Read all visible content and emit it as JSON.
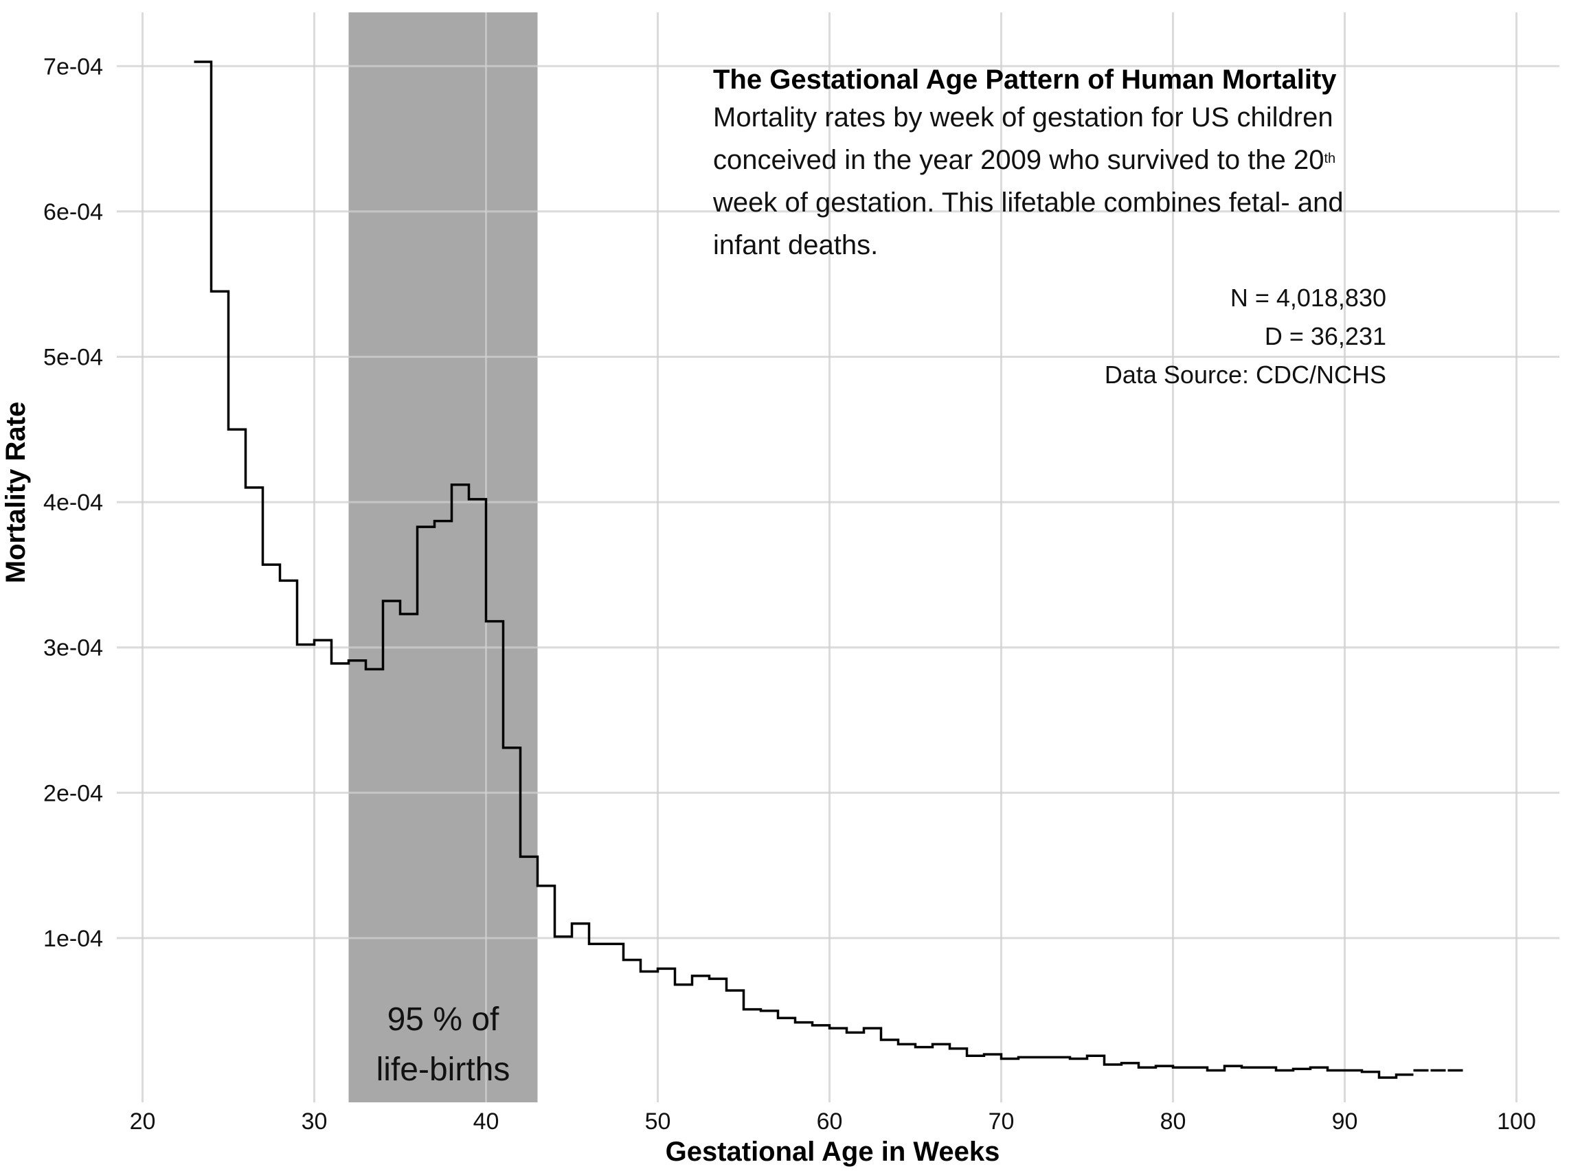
{
  "chart_data": {
    "type": "line",
    "style": "step",
    "title": "The Gestational Age Pattern of Human Mortality",
    "subtitle_parts": {
      "before_sup": "Mortality rates by week of gestation for US children conceived in the year 2009 who survived to the 20",
      "sup": "th",
      "after_sup": " week of gestation. This lifetable combines fetal- and infant deaths."
    },
    "annotations": {
      "n": "N = 4,018,830",
      "d": "D = 36,231",
      "source": "Data Source: CDC/NCHS",
      "band_line1": "95 % of",
      "band_line2": "life-births"
    },
    "xlabel": "Gestational Age in Weeks",
    "ylabel": "Mortality Rate",
    "xlim": [
      18.5,
      102.5
    ],
    "ylim": [
      -1.3e-05,
      0.000737
    ],
    "x_ticks": [
      20,
      30,
      40,
      50,
      60,
      70,
      80,
      90,
      100
    ],
    "x_tick_labels": [
      "20",
      "30",
      "40",
      "50",
      "60",
      "70",
      "80",
      "90",
      "100"
    ],
    "y_ticks": [
      0.0001,
      0.0002,
      0.0003,
      0.0004,
      0.0005,
      0.0006,
      0.0007
    ],
    "y_tick_labels": [
      "1e-04",
      "2e-04",
      "3e-04",
      "4e-04",
      "5e-04",
      "6e-04",
      "7e-04"
    ],
    "band": {
      "x_start": 32,
      "x_end": 43,
      "color": "#a8a8a8"
    },
    "grid": true,
    "line_color": "#000000",
    "series": [
      {
        "x": [
          23,
          24,
          25,
          26,
          27,
          28,
          29,
          30,
          31,
          32,
          33,
          34,
          35,
          36,
          37,
          38,
          39,
          40,
          41,
          42,
          43,
          44,
          45,
          46,
          47,
          48,
          49,
          50,
          51,
          52,
          53,
          54,
          55,
          56,
          57,
          58,
          59,
          60,
          61,
          62,
          63,
          64,
          65,
          66,
          67,
          68,
          69,
          70,
          71,
          72,
          73,
          74,
          75,
          76,
          77,
          78,
          79,
          80,
          81,
          82,
          83,
          84,
          85,
          86,
          87,
          88,
          89,
          90,
          91,
          92,
          93,
          94,
          95,
          96
        ],
        "values": [
          0.000703,
          0.000545,
          0.00045,
          0.00041,
          0.000357,
          0.000346,
          0.000302,
          0.000305,
          0.000289,
          0.000291,
          0.000285,
          0.000332,
          0.000323,
          0.000383,
          0.000387,
          0.000412,
          0.000402,
          0.000318,
          0.000231,
          0.000156,
          0.000136,
          0.000101,
          0.00011,
          9.6e-05,
          9.6e-05,
          8.5e-05,
          7.7e-05,
          7.9e-05,
          6.8e-05,
          7.4e-05,
          7.2e-05,
          6.4e-05,
          5.1e-05,
          5e-05,
          4.5e-05,
          4.2e-05,
          4e-05,
          3.8e-05,
          3.5e-05,
          3.8e-05,
          3e-05,
          2.7e-05,
          2.5e-05,
          2.7e-05,
          2.4e-05,
          1.9e-05,
          2e-05,
          1.7e-05,
          1.8e-05,
          1.8e-05,
          1.8e-05,
          1.7e-05,
          1.9e-05,
          1.3e-05,
          1.4e-05,
          1.1e-05,
          1.2e-05,
          1.1e-05,
          1.1e-05,
          9e-06,
          1.2e-05,
          1.1e-05,
          1.1e-05,
          9e-06,
          1e-05,
          1.1e-05,
          9e-06,
          9e-06,
          8e-06,
          4e-06,
          6e-06,
          9e-06,
          9e-06,
          9e-06
        ],
        "dashed_from_x": 94
      }
    ]
  }
}
